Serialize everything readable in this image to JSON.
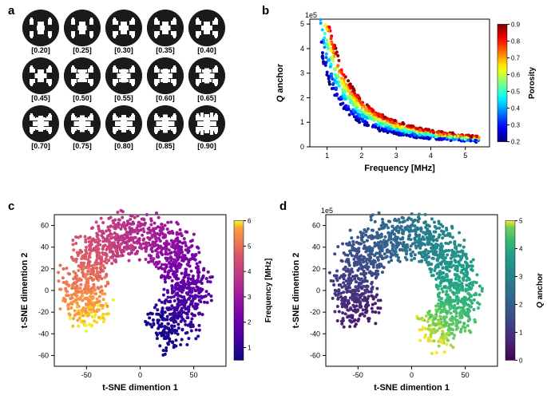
{
  "panels": {
    "a": {
      "label": "a"
    },
    "b": {
      "label": "b"
    },
    "c": {
      "label": "c"
    },
    "d": {
      "label": "d"
    }
  },
  "panel_a": {
    "samples": [
      {
        "label": "[0.20]",
        "porosity": 0.2
      },
      {
        "label": "[0.25]",
        "porosity": 0.25
      },
      {
        "label": "[0.30]",
        "porosity": 0.3
      },
      {
        "label": "[0.35]",
        "porosity": 0.35
      },
      {
        "label": "[0.40]",
        "porosity": 0.4
      },
      {
        "label": "[0.45]",
        "porosity": 0.45
      },
      {
        "label": "[0.50]",
        "porosity": 0.5
      },
      {
        "label": "[0.55]",
        "porosity": 0.55
      },
      {
        "label": "[0.60]",
        "porosity": 0.6
      },
      {
        "label": "[0.65]",
        "porosity": 0.65
      },
      {
        "label": "[0.70]",
        "porosity": 0.7
      },
      {
        "label": "[0.75]",
        "porosity": 0.75
      },
      {
        "label": "[0.80]",
        "porosity": 0.8
      },
      {
        "label": "[0.85]",
        "porosity": 0.85
      },
      {
        "label": "[0.90]",
        "porosity": 0.9
      }
    ]
  },
  "panel_b": {
    "type": "scatter",
    "xlabel": "Frequency [MHz]",
    "ylabel": "Q anchor",
    "y_exp_label": "1e5",
    "xlim": [
      0.5,
      5.7
    ],
    "ylim": [
      0,
      5.2
    ],
    "xticks": [
      1,
      2,
      3,
      4,
      5
    ],
    "yticks": [
      0,
      1,
      2,
      3,
      4,
      5
    ],
    "cbar_label": "Porosity",
    "cbar_min": 0.2,
    "cbar_max": 0.9,
    "cbar_ticks": [
      0.2,
      0.3,
      0.4,
      0.5,
      0.6,
      0.7,
      0.8,
      0.9
    ],
    "cbar_cmap": "jet",
    "bg": "#ffffff",
    "marker_size": 2
  },
  "panel_c": {
    "type": "scatter",
    "xlabel": "t-SNE dimention 1",
    "ylabel": "t-SNE dimention 2",
    "xlim": [
      -80,
      80
    ],
    "ylim": [
      -70,
      70
    ],
    "xticks": [
      -50,
      0,
      50
    ],
    "yticks": [
      -60,
      -40,
      -20,
      0,
      20,
      40,
      60
    ],
    "cbar_label": "Frequency [MHz]",
    "cbar_min": 0.5,
    "cbar_max": 6,
    "cbar_ticks": [
      1,
      2,
      3,
      4,
      5,
      6
    ],
    "cbar_cmap": "plasma",
    "bg": "#ffffff",
    "marker_size": 2
  },
  "panel_d": {
    "type": "scatter",
    "xlabel": "t-SNE dimention 1",
    "ylabel": "t-SNE dimention 2",
    "y_exp_label": "1e5",
    "xlim": [
      -80,
      80
    ],
    "ylim": [
      -70,
      70
    ],
    "xticks": [
      -50,
      0,
      50
    ],
    "yticks": [
      -60,
      -40,
      -20,
      0,
      20,
      40,
      60
    ],
    "cbar_label": "Q anchor",
    "cbar_min": 0,
    "cbar_max": 5,
    "cbar_ticks": [
      0,
      1,
      2,
      3,
      4,
      5
    ],
    "cbar_cmap": "viridis",
    "bg": "#ffffff",
    "marker_size": 2
  },
  "colormaps": {
    "jet": [
      [
        0.0,
        "#00007f"
      ],
      [
        0.125,
        "#0000ff"
      ],
      [
        0.25,
        "#007fff"
      ],
      [
        0.375,
        "#00ffff"
      ],
      [
        0.5,
        "#7fff7f"
      ],
      [
        0.625,
        "#ffff00"
      ],
      [
        0.75,
        "#ff7f00"
      ],
      [
        0.875,
        "#ff0000"
      ],
      [
        1.0,
        "#7f0000"
      ]
    ],
    "plasma": [
      [
        0.0,
        "#0d0887"
      ],
      [
        0.15,
        "#46039f"
      ],
      [
        0.3,
        "#7201a8"
      ],
      [
        0.45,
        "#9c179e"
      ],
      [
        0.6,
        "#bd3786"
      ],
      [
        0.75,
        "#d8576b"
      ],
      [
        0.85,
        "#ed7953"
      ],
      [
        0.95,
        "#fb9f3a"
      ],
      [
        1.0,
        "#f0f921"
      ]
    ],
    "viridis": [
      [
        0.0,
        "#440154"
      ],
      [
        0.15,
        "#482777"
      ],
      [
        0.3,
        "#3e4a89"
      ],
      [
        0.45,
        "#31688e"
      ],
      [
        0.6,
        "#26828e"
      ],
      [
        0.75,
        "#1f9e89"
      ],
      [
        0.85,
        "#35b779"
      ],
      [
        0.95,
        "#6ece58"
      ],
      [
        1.0,
        "#fde725"
      ]
    ]
  }
}
